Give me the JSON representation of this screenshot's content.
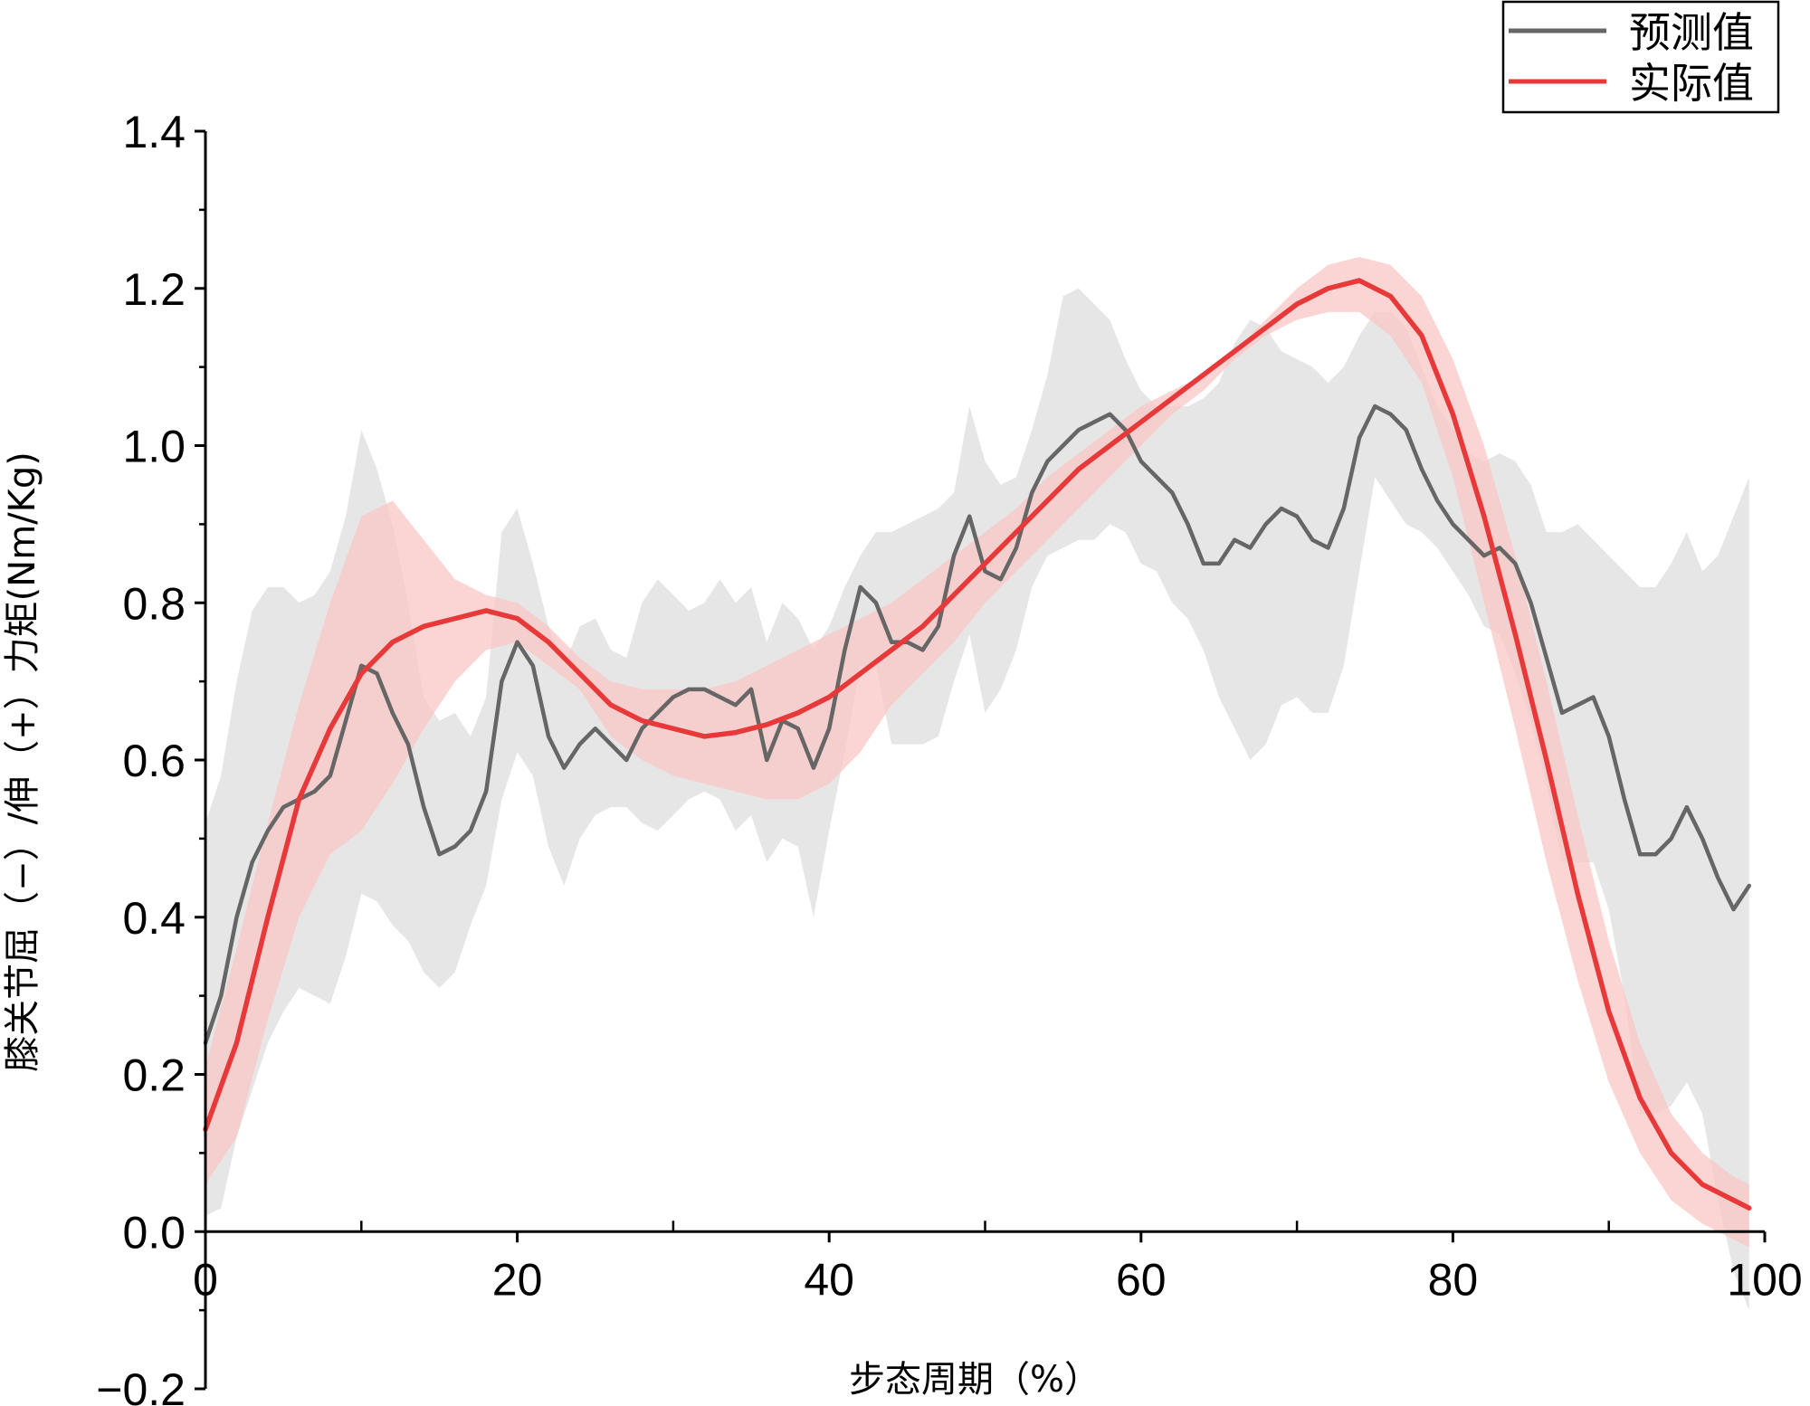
{
  "chart_data": {
    "type": "line",
    "xlabel": "步态周期（%）",
    "ylabel": "膝关节屈（−）/伸（+）力矩(Nm/Kg)",
    "xlim": [
      0,
      100
    ],
    "ylim": [
      -0.2,
      1.4
    ],
    "xticks": [
      "0",
      "20",
      "40",
      "60",
      "80",
      "100"
    ],
    "yticks": [
      "−0.2",
      "0.0",
      "0.2",
      "0.4",
      "0.6",
      "0.8",
      "1.0",
      "1.2",
      "1.4"
    ],
    "legend_position": "top-right",
    "colors": {
      "predicted": "#666666",
      "actual": "#e8393a",
      "predicted_band": "#e3e3e3",
      "actual_band": "#f9c6c6"
    },
    "series": [
      {
        "name": "预测值",
        "x": [
          0,
          1,
          2,
          3,
          4,
          5,
          6,
          7,
          8,
          9,
          10,
          11,
          12,
          13,
          14,
          15,
          16,
          17,
          18,
          19,
          20,
          21,
          22,
          23,
          24,
          25,
          26,
          27,
          28,
          29,
          30,
          31,
          32,
          33,
          34,
          35,
          36,
          37,
          38,
          39,
          40,
          41,
          42,
          43,
          44,
          45,
          46,
          47,
          48,
          49,
          50,
          51,
          52,
          53,
          54,
          55,
          56,
          57,
          58,
          59,
          60,
          61,
          62,
          63,
          64,
          65,
          66,
          67,
          68,
          69,
          70,
          71,
          72,
          73,
          74,
          75,
          76,
          77,
          78,
          79,
          80,
          81,
          82,
          83,
          84,
          85,
          86,
          87,
          88,
          89,
          90,
          91,
          92,
          93,
          94,
          95,
          96,
          97,
          98,
          99
        ],
        "values": [
          0.24,
          0.3,
          0.4,
          0.47,
          0.51,
          0.54,
          0.55,
          0.56,
          0.58,
          0.65,
          0.72,
          0.71,
          0.66,
          0.62,
          0.54,
          0.48,
          0.49,
          0.51,
          0.56,
          0.7,
          0.75,
          0.72,
          0.63,
          0.59,
          0.62,
          0.64,
          0.62,
          0.6,
          0.64,
          0.66,
          0.68,
          0.69,
          0.69,
          0.68,
          0.67,
          0.69,
          0.6,
          0.65,
          0.64,
          0.59,
          0.64,
          0.74,
          0.82,
          0.8,
          0.75,
          0.75,
          0.74,
          0.77,
          0.86,
          0.91,
          0.84,
          0.83,
          0.87,
          0.94,
          0.98,
          1.0,
          1.02,
          1.03,
          1.04,
          1.02,
          0.98,
          0.96,
          0.94,
          0.9,
          0.85,
          0.85,
          0.88,
          0.87,
          0.9,
          0.92,
          0.91,
          0.88,
          0.87,
          0.92,
          1.01,
          1.05,
          1.04,
          1.02,
          0.97,
          0.93,
          0.9,
          0.88,
          0.86,
          0.87,
          0.85,
          0.8,
          0.73,
          0.66,
          0.67,
          0.68,
          0.63,
          0.55,
          0.48,
          0.48,
          0.5,
          0.54,
          0.5,
          0.45,
          0.41,
          0.44
        ],
        "band_upper": [
          0.52,
          0.58,
          0.7,
          0.79,
          0.82,
          0.82,
          0.8,
          0.81,
          0.84,
          0.91,
          1.02,
          0.97,
          0.9,
          0.8,
          0.68,
          0.65,
          0.66,
          0.63,
          0.68,
          0.89,
          0.92,
          0.85,
          0.77,
          0.72,
          0.77,
          0.78,
          0.74,
          0.73,
          0.8,
          0.83,
          0.81,
          0.79,
          0.8,
          0.83,
          0.8,
          0.82,
          0.75,
          0.8,
          0.78,
          0.74,
          0.77,
          0.82,
          0.86,
          0.89,
          0.89,
          0.9,
          0.91,
          0.92,
          0.94,
          1.05,
          0.98,
          0.95,
          0.96,
          1.02,
          1.09,
          1.19,
          1.2,
          1.18,
          1.16,
          1.11,
          1.07,
          1.05,
          1.05,
          1.05,
          1.06,
          1.08,
          1.13,
          1.16,
          1.15,
          1.12,
          1.11,
          1.1,
          1.08,
          1.1,
          1.14,
          1.17,
          1.17,
          1.15,
          1.1,
          1.05,
          1.02,
          0.99,
          0.98,
          0.99,
          0.98,
          0.95,
          0.89,
          0.89,
          0.9,
          0.88,
          0.86,
          0.84,
          0.82,
          0.82,
          0.85,
          0.89,
          0.84,
          0.86,
          0.91,
          0.96
        ],
        "band_lower": [
          0.02,
          0.03,
          0.12,
          0.18,
          0.24,
          0.28,
          0.31,
          0.3,
          0.29,
          0.35,
          0.43,
          0.42,
          0.39,
          0.37,
          0.33,
          0.31,
          0.33,
          0.39,
          0.44,
          0.55,
          0.61,
          0.58,
          0.49,
          0.44,
          0.5,
          0.53,
          0.54,
          0.54,
          0.52,
          0.51,
          0.53,
          0.55,
          0.56,
          0.55,
          0.51,
          0.53,
          0.47,
          0.5,
          0.49,
          0.4,
          0.51,
          0.61,
          0.72,
          0.72,
          0.62,
          0.62,
          0.62,
          0.63,
          0.7,
          0.76,
          0.66,
          0.69,
          0.74,
          0.82,
          0.86,
          0.87,
          0.88,
          0.88,
          0.9,
          0.89,
          0.85,
          0.84,
          0.8,
          0.78,
          0.74,
          0.68,
          0.64,
          0.6,
          0.62,
          0.67,
          0.68,
          0.66,
          0.66,
          0.72,
          0.84,
          0.96,
          0.93,
          0.9,
          0.89,
          0.87,
          0.84,
          0.81,
          0.77,
          0.76,
          0.71,
          0.65,
          0.57,
          0.47,
          0.47,
          0.47,
          0.41,
          0.3,
          0.15,
          0.15,
          0.16,
          0.19,
          0.15,
          0.04,
          -0.05,
          -0.1
        ]
      },
      {
        "name": "实际值",
        "x": [
          0,
          2,
          4,
          6,
          8,
          10,
          12,
          14,
          16,
          18,
          20,
          22,
          24,
          26,
          28,
          30,
          32,
          34,
          36,
          38,
          40,
          42,
          44,
          46,
          48,
          50,
          52,
          54,
          56,
          58,
          60,
          62,
          64,
          66,
          68,
          70,
          72,
          74,
          76,
          78,
          80,
          82,
          84,
          86,
          88,
          90,
          92,
          94,
          96,
          98,
          99
        ],
        "values": [
          0.13,
          0.24,
          0.4,
          0.55,
          0.64,
          0.71,
          0.75,
          0.77,
          0.78,
          0.79,
          0.78,
          0.75,
          0.71,
          0.67,
          0.65,
          0.64,
          0.63,
          0.635,
          0.645,
          0.66,
          0.68,
          0.71,
          0.74,
          0.77,
          0.81,
          0.85,
          0.89,
          0.93,
          0.97,
          1.0,
          1.03,
          1.06,
          1.09,
          1.12,
          1.15,
          1.18,
          1.2,
          1.21,
          1.19,
          1.14,
          1.04,
          0.91,
          0.76,
          0.6,
          0.43,
          0.28,
          0.17,
          0.1,
          0.06,
          0.04,
          0.03
        ],
        "band_upper": [
          0.21,
          0.36,
          0.52,
          0.67,
          0.8,
          0.91,
          0.93,
          0.88,
          0.83,
          0.81,
          0.8,
          0.77,
          0.73,
          0.7,
          0.69,
          0.69,
          0.69,
          0.7,
          0.72,
          0.74,
          0.76,
          0.78,
          0.8,
          0.83,
          0.86,
          0.89,
          0.92,
          0.96,
          0.99,
          1.02,
          1.05,
          1.07,
          1.09,
          1.12,
          1.16,
          1.2,
          1.23,
          1.24,
          1.23,
          1.19,
          1.11,
          1.0,
          0.86,
          0.7,
          0.53,
          0.37,
          0.24,
          0.15,
          0.1,
          0.07,
          0.06
        ],
        "band_lower": [
          0.06,
          0.12,
          0.27,
          0.4,
          0.48,
          0.51,
          0.57,
          0.64,
          0.7,
          0.74,
          0.75,
          0.72,
          0.69,
          0.63,
          0.6,
          0.58,
          0.57,
          0.56,
          0.55,
          0.55,
          0.57,
          0.61,
          0.67,
          0.71,
          0.75,
          0.8,
          0.84,
          0.88,
          0.92,
          0.96,
          1.0,
          1.04,
          1.07,
          1.11,
          1.14,
          1.16,
          1.17,
          1.17,
          1.14,
          1.08,
          0.96,
          0.8,
          0.64,
          0.47,
          0.32,
          0.19,
          0.1,
          0.04,
          0.01,
          -0.01,
          -0.02
        ]
      }
    ]
  }
}
